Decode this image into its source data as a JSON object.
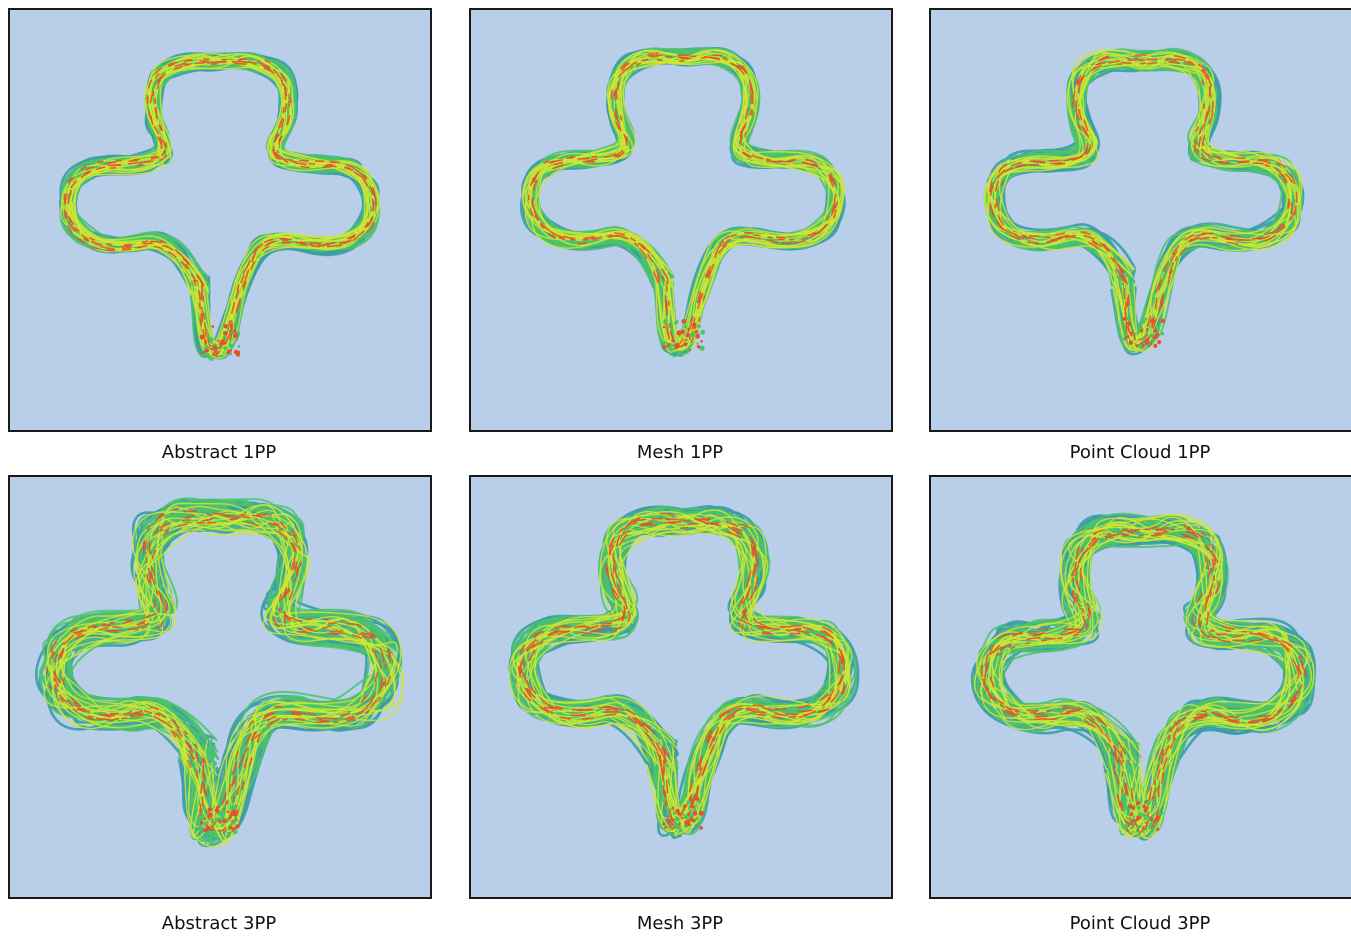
{
  "panels": [
    {
      "caption": "Abstract 1PP"
    },
    {
      "caption": "Mesh 1PP"
    },
    {
      "caption": "Point Cloud 1PP"
    },
    {
      "caption": "Abstract 3PP"
    },
    {
      "caption": "Mesh 3PP"
    },
    {
      "caption": "Point Cloud 3PP"
    }
  ],
  "colors": {
    "background": "#b9cfe9",
    "low_density": "#3a9da5",
    "mid_density": "#4cc36b",
    "high_density": "#cfe634",
    "peak_density": "#e2542e"
  }
}
